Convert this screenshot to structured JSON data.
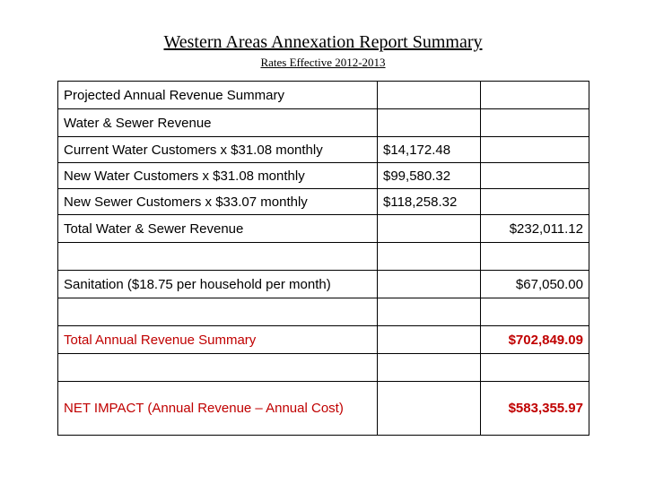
{
  "title": "Western Areas Annexation Report Summary",
  "subtitle": "Rates Effective 2012-2013",
  "rows": {
    "projected": "Projected Annual Revenue Summary",
    "water_sewer_header": "Water & Sewer Revenue",
    "current_water": {
      "label": "Current Water Customers x $31.08 monthly",
      "amount": "$14,172.48"
    },
    "new_water": {
      "label": "New Water Customers x $31.08 monthly",
      "amount": "$99,580.32"
    },
    "new_sewer": {
      "label": "New Sewer Customers x $33.07 monthly",
      "amount": "$118,258.32"
    },
    "total_water_sewer": {
      "label": "Total Water & Sewer Revenue",
      "total": "$232,011.12"
    },
    "sanitation": {
      "label": "Sanitation ($18.75 per household per month)",
      "total": "$67,050.00"
    },
    "total_annual": {
      "label": "Total Annual Revenue Summary",
      "total": "$702,849.09"
    },
    "net_impact": {
      "label": "NET IMPACT  (Annual Revenue – Annual Cost)",
      "total": "$583,355.97"
    }
  },
  "colors": {
    "emphasis_red": "#c00000"
  }
}
